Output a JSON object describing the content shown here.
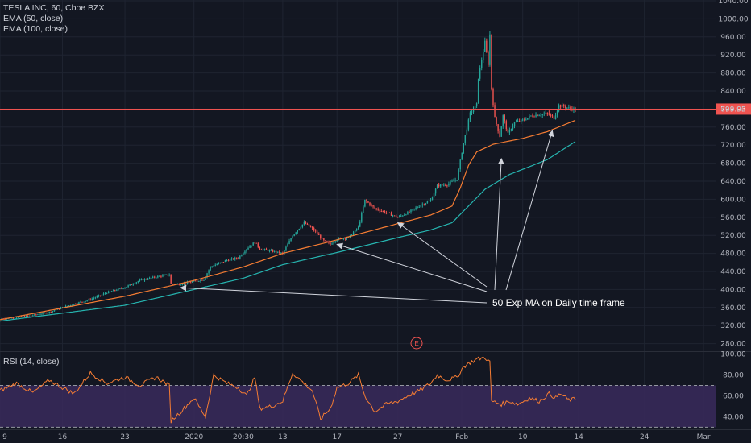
{
  "header": {
    "symbol_line": "TESLA INC, 60, Cboe BZX",
    "ema50_label": "EMA (50, close)",
    "ema100_label": "EMA (100, close)",
    "rsi_label": "RSI (14, close)"
  },
  "last_price": {
    "value": 799.93,
    "label": "799.93"
  },
  "annotation": {
    "text": "50 Exp MA on Daily time frame",
    "event_marker": "E"
  },
  "colors": {
    "background": "#131722",
    "up": "#26a69a",
    "down": "#ef5350",
    "ema50": "#f57c33",
    "ema100": "#26b5b0",
    "rsi_line": "#f57c33",
    "rsi_band": "#3a2a5c",
    "grid": "#1f2431",
    "price_line": "#ef5350",
    "annotation": "#d1d4dc"
  },
  "chart_data": [
    {
      "type": "candlestick",
      "title": "TESLA INC, 60, Cboe BZX",
      "x_ticks": [
        "9",
        "16",
        "23",
        "2020",
        "20:30",
        "13",
        "17",
        "27",
        "Feb",
        "10",
        "14",
        "24",
        "Mar"
      ],
      "y_ticks": [
        280,
        320,
        360,
        400,
        440,
        480,
        520,
        560,
        600,
        640,
        680,
        720,
        760,
        800,
        840,
        880,
        920,
        960,
        1000,
        1040
      ],
      "ylim": [
        265,
        1040
      ],
      "x_index_range": [
        0,
        350
      ],
      "tick_index": [
        0,
        38,
        76,
        118,
        148,
        172,
        205,
        242,
        281,
        318,
        352,
        392,
        428
      ],
      "price_key_points": [
        [
          0,
          335
        ],
        [
          10,
          338
        ],
        [
          20,
          343
        ],
        [
          30,
          350
        ],
        [
          38,
          360
        ],
        [
          45,
          368
        ],
        [
          55,
          378
        ],
        [
          65,
          393
        ],
        [
          76,
          405
        ],
        [
          85,
          420
        ],
        [
          95,
          428
        ],
        [
          103,
          433
        ],
        [
          104,
          412
        ],
        [
          110,
          412
        ],
        [
          118,
          418
        ],
        [
          124,
          422
        ],
        [
          128,
          450
        ],
        [
          138,
          465
        ],
        [
          145,
          470
        ],
        [
          150,
          490
        ],
        [
          155,
          505
        ],
        [
          158,
          490
        ],
        [
          165,
          485
        ],
        [
          172,
          480
        ],
        [
          178,
          520
        ],
        [
          185,
          548
        ],
        [
          190,
          535
        ],
        [
          197,
          508
        ],
        [
          201,
          500
        ],
        [
          205,
          512
        ],
        [
          212,
          515
        ],
        [
          218,
          538
        ],
        [
          222,
          598
        ],
        [
          228,
          580
        ],
        [
          235,
          570
        ],
        [
          242,
          560
        ],
        [
          248,
          570
        ],
        [
          255,
          585
        ],
        [
          262,
          598
        ],
        [
          266,
          630
        ],
        [
          272,
          633
        ],
        [
          278,
          645
        ],
        [
          282,
          725
        ],
        [
          286,
          790
        ],
        [
          290,
          810
        ],
        [
          291,
          870
        ],
        [
          295,
          948
        ],
        [
          297,
          900
        ],
        [
          298,
          965
        ],
        [
          299,
          845
        ],
        [
          301,
          780
        ],
        [
          304,
          740
        ],
        [
          306,
          785
        ],
        [
          309,
          745
        ],
        [
          313,
          770
        ],
        [
          318,
          775
        ],
        [
          323,
          785
        ],
        [
          328,
          788
        ],
        [
          333,
          790
        ],
        [
          337,
          780
        ],
        [
          340,
          808
        ],
        [
          343,
          806
        ],
        [
          346,
          802
        ],
        [
          350,
          799
        ]
      ],
      "series": [
        {
          "name": "EMA (50, close)",
          "key_points": [
            [
              0,
              333
            ],
            [
              76,
              385
            ],
            [
              118,
              420
            ],
            [
              148,
              450
            ],
            [
              172,
              480
            ],
            [
              205,
              510
            ],
            [
              242,
              546
            ],
            [
              262,
              565
            ],
            [
              275,
              585
            ],
            [
              280,
              625
            ],
            [
              285,
              675
            ],
            [
              290,
              705
            ],
            [
              300,
              722
            ],
            [
              318,
              735
            ],
            [
              333,
              750
            ],
            [
              350,
              775
            ]
          ]
        },
        {
          "name": "EMA (100, close)",
          "key_points": [
            [
              0,
              330
            ],
            [
              76,
              365
            ],
            [
              118,
              400
            ],
            [
              148,
              425
            ],
            [
              172,
              455
            ],
            [
              205,
              482
            ],
            [
              242,
              515
            ],
            [
              262,
              532
            ],
            [
              275,
              548
            ],
            [
              285,
              585
            ],
            [
              295,
              622
            ],
            [
              310,
              655
            ],
            [
              333,
              688
            ],
            [
              350,
              728
            ]
          ]
        }
      ]
    },
    {
      "type": "line",
      "title": "RSI (14, close)",
      "y_ticks": [
        40,
        60,
        80,
        100
      ],
      "ylim": [
        28,
        102
      ],
      "band": [
        30,
        70
      ],
      "series": [
        {
          "name": "RSI (14, close)",
          "key_points": [
            [
              0,
              65
            ],
            [
              10,
              72
            ],
            [
              20,
              63
            ],
            [
              30,
              75
            ],
            [
              38,
              68
            ],
            [
              45,
              62
            ],
            [
              55,
              82
            ],
            [
              65,
              72
            ],
            [
              76,
              78
            ],
            [
              85,
              70
            ],
            [
              95,
              78
            ],
            [
              103,
              70
            ],
            [
              104,
              36
            ],
            [
              110,
              45
            ],
            [
              118,
              58
            ],
            [
              125,
              40
            ],
            [
              130,
              80
            ],
            [
              138,
              72
            ],
            [
              145,
              68
            ],
            [
              150,
              60
            ],
            [
              155,
              78
            ],
            [
              158,
              48
            ],
            [
              165,
              50
            ],
            [
              172,
              55
            ],
            [
              178,
              82
            ],
            [
              185,
              72
            ],
            [
              190,
              65
            ],
            [
              195,
              38
            ],
            [
              201,
              48
            ],
            [
              205,
              68
            ],
            [
              212,
              72
            ],
            [
              218,
              80
            ],
            [
              222,
              60
            ],
            [
              228,
              45
            ],
            [
              235,
              52
            ],
            [
              242,
              55
            ],
            [
              248,
              60
            ],
            [
              255,
              65
            ],
            [
              262,
              72
            ],
            [
              266,
              80
            ],
            [
              272,
              75
            ],
            [
              278,
              78
            ],
            [
              282,
              88
            ],
            [
              286,
              92
            ],
            [
              290,
              95
            ],
            [
              295,
              97
            ],
            [
              298,
              92
            ],
            [
              299,
              55
            ],
            [
              305,
              52
            ],
            [
              310,
              55
            ],
            [
              315,
              52
            ],
            [
              322,
              58
            ],
            [
              328,
              55
            ],
            [
              334,
              62
            ],
            [
              338,
              58
            ],
            [
              341,
              62
            ],
            [
              346,
              56
            ],
            [
              350,
              57
            ]
          ]
        }
      ]
    }
  ]
}
